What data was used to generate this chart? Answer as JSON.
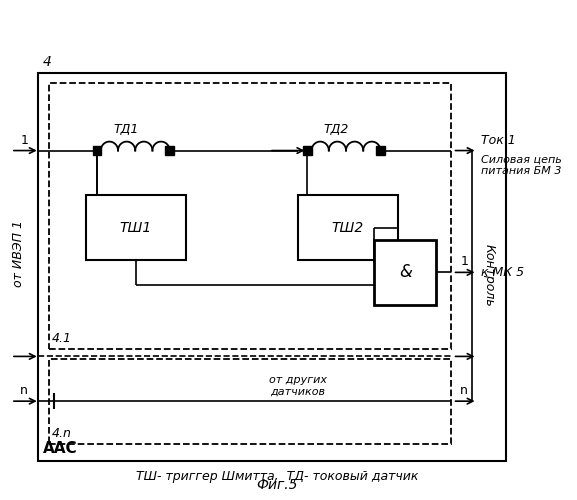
{
  "title": "Фиг.5",
  "caption": "ТШ- триггер Шмитта,  ТД- токовый датчик",
  "bg_color": "#ffffff",
  "label_4": "4",
  "label_41": "4.1",
  "label_4n": "4.n",
  "label_AAC": "ААС",
  "label_tok": "Ток 1",
  "label_power": "Силовая цепь\nпитания БМ 3",
  "label_mk5": "к МК 5",
  "label_1_left": "1",
  "label_1_right": "1",
  "label_n_left": "n",
  "label_n_right": "n",
  "label_control": "Контроль",
  "label_from_ivep": "от ИВЭП 1",
  "label_td1": "ТД1",
  "label_td2": "ТД2",
  "label_tsh1": "ТШ1",
  "label_tsh2": "ТШ2",
  "label_and": "&",
  "label_other_sensors": "от других\nдатчиков"
}
